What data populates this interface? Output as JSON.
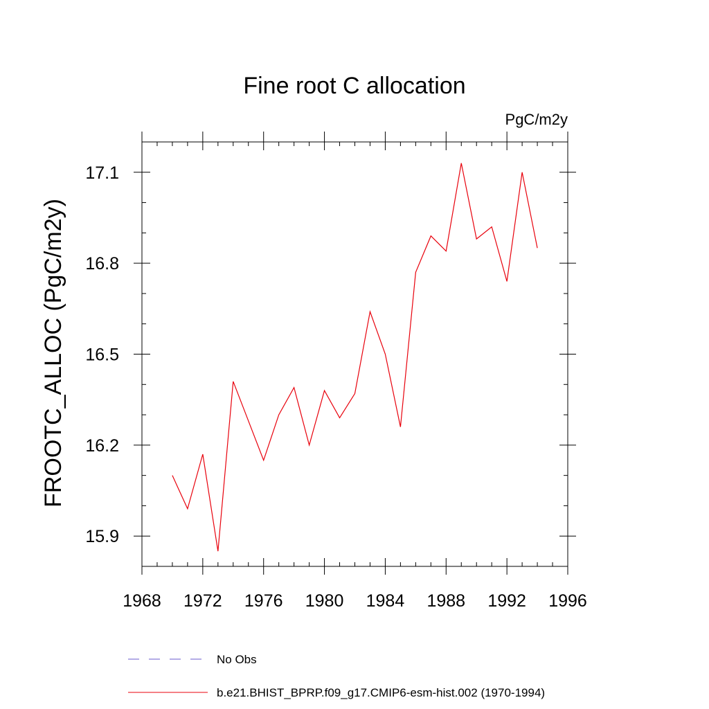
{
  "chart_data": {
    "type": "line",
    "title": "Fine root C allocation",
    "units_label": "PgC/m2y",
    "ylabel": "FROOTC_ALLOC  (PgC/m2y)",
    "xlabel": "",
    "xlim": [
      1968,
      1996
    ],
    "ylim": [
      15.8,
      17.2
    ],
    "x_ticks": [
      1968,
      1972,
      1976,
      1980,
      1984,
      1988,
      1992,
      1996
    ],
    "y_ticks": [
      15.9,
      16.2,
      16.5,
      16.8,
      17.1
    ],
    "x_tick_labels": [
      "1968",
      "1972",
      "1976",
      "1980",
      "1984",
      "1988",
      "1992",
      "1996"
    ],
    "y_tick_labels": [
      "15.9",
      "16.2",
      "16.5",
      "16.8",
      "17.1"
    ],
    "grid": false,
    "series": [
      {
        "name": "b.e21.BHIST_BPRP.f09_g17.CMIP6-esm-hist.002 (1970-1994)",
        "color": "#e8000b",
        "x": [
          1970,
          1971,
          1972,
          1973,
          1974,
          1975,
          1976,
          1977,
          1978,
          1979,
          1980,
          1981,
          1982,
          1983,
          1984,
          1985,
          1986,
          1987,
          1988,
          1989,
          1990,
          1991,
          1992,
          1993,
          1994
        ],
        "y": [
          16.1,
          15.99,
          16.17,
          15.85,
          16.41,
          16.28,
          16.15,
          16.3,
          16.39,
          16.2,
          16.38,
          16.29,
          16.37,
          16.64,
          16.5,
          16.26,
          16.77,
          16.89,
          16.84,
          17.13,
          16.88,
          16.92,
          16.74,
          17.1,
          16.85
        ]
      }
    ],
    "legend": {
      "placement": "bottom",
      "entries": [
        {
          "label": "No Obs",
          "style": "dashed",
          "color": "#6a5acd"
        },
        {
          "label": "b.e21.BHIST_BPRP.f09_g17.CMIP6-esm-hist.002 (1970-1994)",
          "style": "solid",
          "color": "#e8000b"
        }
      ]
    }
  }
}
